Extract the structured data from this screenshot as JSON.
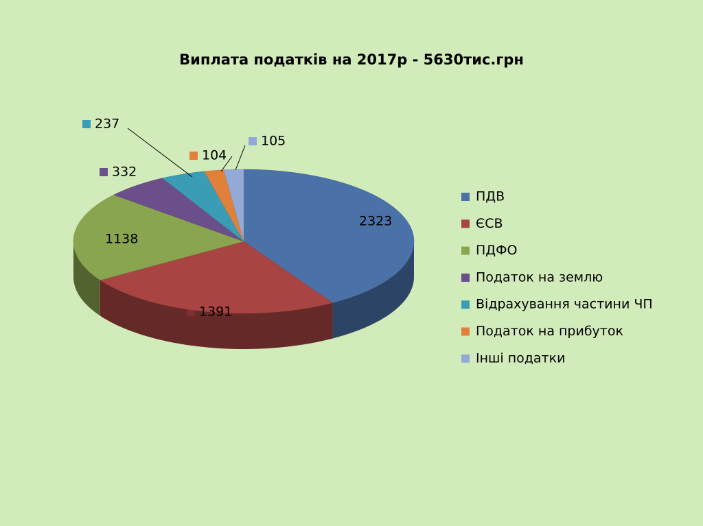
{
  "chart_data": {
    "type": "pie3d",
    "title": "Виплата податків на 2017р - 5630тис.грн",
    "categories": [
      "ПДВ",
      "ЄСВ",
      "ПДФО",
      "Податок на землю",
      "Відрахування частини ЧП",
      "Податок на прибуток",
      "Інші податки"
    ],
    "values": [
      2323,
      1391,
      1138,
      332,
      237,
      104,
      105
    ],
    "colors": [
      "#4a72a8",
      "#a84442",
      "#8aa54f",
      "#6b4f8a",
      "#3b9db5",
      "#e0803a",
      "#94aad6"
    ],
    "legend": "right"
  }
}
